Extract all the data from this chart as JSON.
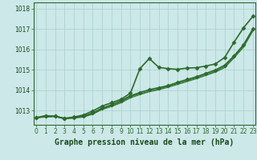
{
  "title": "Graphe pression niveau de la mer (hPa)",
  "xlabel_hours": [
    0,
    1,
    2,
    3,
    4,
    5,
    6,
    7,
    8,
    9,
    10,
    11,
    12,
    13,
    14,
    15,
    16,
    17,
    18,
    19,
    20,
    21,
    22,
    23
  ],
  "series": [
    {
      "name": "line_high_marked",
      "y": [
        1012.65,
        1012.75,
        1012.72,
        1012.62,
        1012.68,
        1012.78,
        1012.98,
        1013.22,
        1013.38,
        1013.55,
        1013.85,
        1015.05,
        1015.55,
        1015.12,
        1015.05,
        1015.02,
        1015.08,
        1015.1,
        1015.18,
        1015.28,
        1015.6,
        1016.35,
        1017.05,
        1017.62
      ],
      "color": "#2d6a2d",
      "linewidth": 1.2,
      "marker": "D",
      "markersize": 2.5
    },
    {
      "name": "line_low_marked",
      "y": [
        1012.65,
        1012.72,
        1012.72,
        1012.6,
        1012.65,
        1012.72,
        1012.88,
        1013.12,
        1013.28,
        1013.48,
        1013.72,
        1013.88,
        1014.02,
        1014.12,
        1014.22,
        1014.38,
        1014.52,
        1014.65,
        1014.82,
        1014.98,
        1015.22,
        1015.68,
        1016.22,
        1017.0
      ],
      "color": "#2d6a2d",
      "linewidth": 1.2,
      "marker": "D",
      "markersize": 2.5
    },
    {
      "name": "line_straight1",
      "y": [
        1012.65,
        1012.7,
        1012.72,
        1012.62,
        1012.65,
        1012.7,
        1012.85,
        1013.08,
        1013.22,
        1013.42,
        1013.68,
        1013.82,
        1013.95,
        1014.06,
        1014.18,
        1014.32,
        1014.46,
        1014.6,
        1014.76,
        1014.92,
        1015.15,
        1015.62,
        1016.15,
        1016.95
      ],
      "color": "#3a7a3a",
      "linewidth": 0.9,
      "marker": null,
      "markersize": 0
    },
    {
      "name": "line_straight2",
      "y": [
        1012.65,
        1012.68,
        1012.7,
        1012.6,
        1012.63,
        1012.68,
        1012.82,
        1013.05,
        1013.2,
        1013.38,
        1013.62,
        1013.78,
        1013.92,
        1014.02,
        1014.14,
        1014.28,
        1014.42,
        1014.56,
        1014.72,
        1014.88,
        1015.1,
        1015.58,
        1016.1,
        1016.9
      ],
      "color": "#3a7a3a",
      "linewidth": 0.9,
      "marker": null,
      "markersize": 0
    }
  ],
  "ylim": [
    1012.3,
    1018.3
  ],
  "yticks": [
    1013,
    1014,
    1015,
    1016,
    1017,
    1018
  ],
  "background_color": "#cce8e8",
  "grid_color": "#aacece",
  "tick_label_color": "#1a4a1a",
  "title_color": "#1a4a1a",
  "title_fontsize": 7.0,
  "tick_fontsize": 5.5,
  "line_color": "#2d6a2d",
  "xlim": [
    -0.3,
    23.3
  ]
}
